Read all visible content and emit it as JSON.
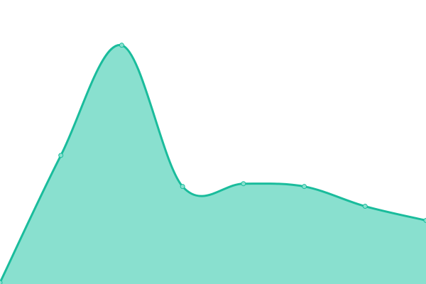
{
  "chart_data": {
    "type": "area",
    "x": [
      0,
      1,
      2,
      3,
      4,
      5,
      6,
      7
    ],
    "values": [
      0,
      45,
      84,
      34,
      35,
      34,
      27,
      22
    ],
    "ylim": [
      0,
      100
    ],
    "grid": false,
    "axes_visible": false,
    "smooth": true,
    "markers": true,
    "colors": {
      "line": "#1abc9c",
      "fill": "#89e0cf",
      "marker_fill": "#89e0cf"
    }
  }
}
